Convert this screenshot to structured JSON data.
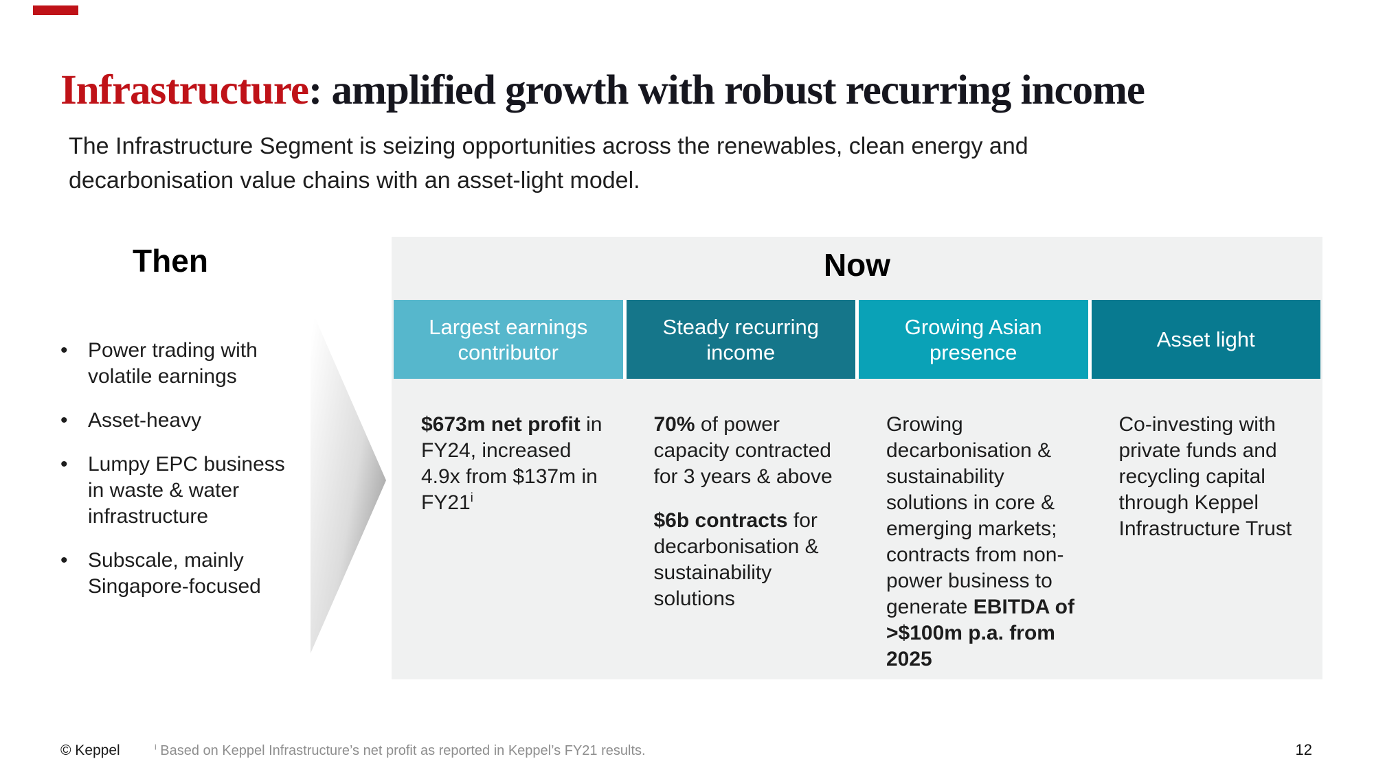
{
  "accent_color": "#bf1218",
  "title": {
    "accent": "Infrastructure",
    "rest": ": amplified growth with robust recurring income"
  },
  "subtitle": {
    "line1": "The Infrastructure Segment is seizing opportunities across the renewables, clean energy and",
    "line2": "decarbonisation value chains with an asset-light model."
  },
  "then": {
    "heading": "Then",
    "bullets": [
      "Power trading with volatile earnings",
      "Asset-heavy",
      "Lumpy EPC business in waste & water infrastructure",
      "Subscale, mainly Singapore-focused"
    ]
  },
  "now": {
    "heading": "Now",
    "columns": [
      {
        "label": "Largest earnings contributor",
        "color": "#56b7cc",
        "body": [
          [
            {
              "t": "$673m net profit",
              "b": true
            },
            {
              "t": " in FY24, increased 4.9x from $137m in FY21"
            },
            {
              "t": "i",
              "sup": true
            }
          ]
        ]
      },
      {
        "label": "Steady recurring income",
        "color": "#15768a",
        "body": [
          [
            {
              "t": "70%",
              "b": true
            },
            {
              "t": " of power capacity contracted for 3 years & above"
            }
          ],
          [
            {
              "t": "$6b contracts",
              "b": true
            },
            {
              "t": " for decarbonisation & sustainability solutions"
            }
          ]
        ]
      },
      {
        "label": "Growing Asian presence",
        "color": "#0aa2b7",
        "body": [
          [
            {
              "t": "Growing decarbonisation & sustainability solutions in core & emerging markets; contracts from non-power business to generate "
            },
            {
              "t": "EBITDA of >$100m p.a. from 2025",
              "b": true
            }
          ]
        ]
      },
      {
        "label": "Asset light",
        "color": "#087a90",
        "body": [
          [
            {
              "t": "Co-investing with private funds and recycling capital through Keppel Infrastructure Trust"
            }
          ]
        ]
      }
    ]
  },
  "footer": {
    "copyright": "© Keppel",
    "footnote": [
      {
        "t": "i",
        "sup": true
      },
      {
        "t": " Based on Keppel Infrastructure’s net profit as reported in Keppel’s FY21 results."
      }
    ],
    "page": "12"
  }
}
